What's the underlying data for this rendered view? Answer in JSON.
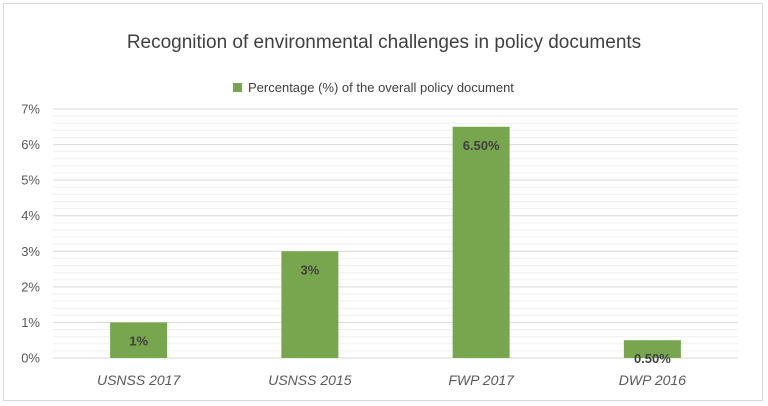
{
  "chart_data": {
    "type": "bar",
    "title": "Recognition of environmental challenges in policy documents",
    "categories": [
      "USNSS 2017",
      "USNSS 2015",
      "FWP 2017",
      "DWP 2016"
    ],
    "series": [
      {
        "name": "Percentage (%) of the overall policy document",
        "values": [
          1,
          3,
          6.5,
          0.5
        ],
        "data_labels": [
          "1%",
          "3%",
          "6.50%",
          "0.50%"
        ],
        "color": "#78a64e"
      }
    ],
    "y_ticks": [
      "0%",
      "1%",
      "2%",
      "3%",
      "4%",
      "5%",
      "6%",
      "7%"
    ],
    "ylim": [
      0,
      7
    ],
    "grid": true,
    "legend_position": "top"
  }
}
